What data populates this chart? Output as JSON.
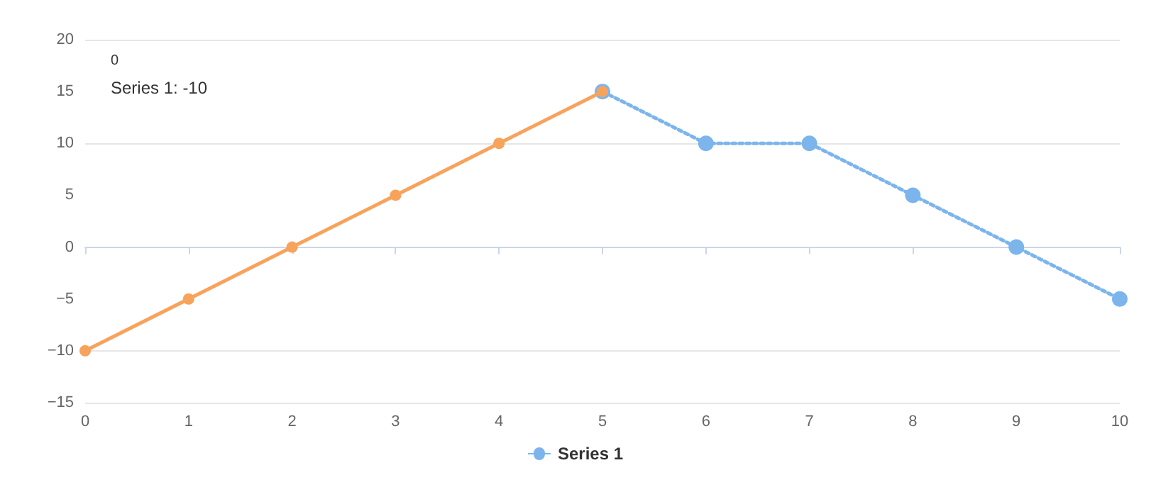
{
  "chart_data": {
    "type": "line",
    "series": [
      {
        "name": "Series 1",
        "color": "#7cb5ec",
        "line_style": "dotted",
        "x": [
          5,
          6,
          7,
          8,
          9,
          10
        ],
        "values": [
          15,
          10,
          10,
          5,
          0,
          -5
        ]
      },
      {
        "color": "#f7a35c",
        "line_style": "solid",
        "x": [
          0,
          1,
          2,
          3,
          4,
          5
        ],
        "values": [
          -10,
          -5,
          0,
          5,
          10,
          15
        ]
      }
    ],
    "xlim": [
      0,
      10
    ],
    "xticks": [
      0,
      1,
      2,
      3,
      4,
      5,
      6,
      7,
      8,
      9,
      10
    ],
    "ylim": [
      -15,
      20
    ],
    "yticks": [
      -15,
      -10,
      -5,
      0,
      5,
      10,
      15,
      20
    ],
    "grid": "y",
    "legend": "bottom",
    "marker": "circle",
    "annotations": [
      "0",
      "Series 1: -10"
    ]
  }
}
